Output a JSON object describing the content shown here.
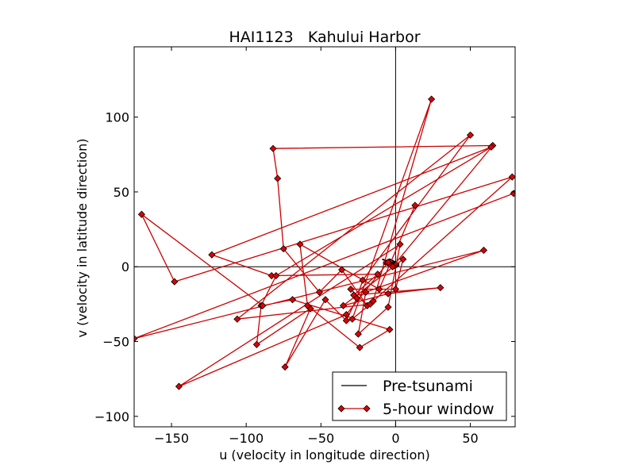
{
  "chart_data": {
    "type": "scatter",
    "title": "HAI1123   Kahului Harbor",
    "xlabel": "u (velocity in longitude direction)",
    "ylabel": "v (velocity in latitude direction)",
    "xlim": [
      -175,
      80
    ],
    "ylim": [
      -107,
      147
    ],
    "xticks": [
      -150,
      -100,
      -50,
      0,
      50
    ],
    "yticks": [
      -100,
      -50,
      0,
      50,
      100
    ],
    "xtick_labels": [
      "−150",
      "−100",
      "−50",
      "0",
      "50"
    ],
    "ytick_labels": [
      "−100",
      "−50",
      "0",
      "50",
      "100"
    ],
    "grid": false,
    "reference_lines": {
      "x": 0,
      "y": 0
    },
    "legend_position": "lower-right",
    "series": [
      {
        "name": "Pre-tsunami",
        "color": "#000000",
        "marker": "line",
        "x": [
          -9,
          -6,
          -4,
          -2,
          -1,
          0,
          1,
          2,
          0,
          -2,
          -4,
          -6,
          -8,
          -5,
          -3,
          -1,
          1,
          2,
          0,
          -3,
          -6,
          -8,
          -4,
          -1,
          1
        ],
        "y": [
          5,
          4,
          3,
          2,
          1,
          0,
          1,
          2,
          3,
          4,
          5,
          4,
          2,
          1,
          0,
          -1,
          0,
          1,
          2,
          3,
          4,
          3,
          2,
          1,
          0
        ]
      },
      {
        "name": "5-hour window",
        "color": "#cc0000",
        "marker": "diamond",
        "x": [
          79,
          -175,
          59,
          -20,
          -25,
          -5,
          3,
          -145,
          -33,
          -5,
          -2,
          65,
          -82,
          -79,
          -75,
          -51,
          -36,
          -19,
          -30,
          0,
          5,
          -35,
          -5,
          30,
          -28,
          -12,
          -83,
          -123,
          64,
          -80,
          -90,
          -93,
          -57,
          -74,
          -47,
          -33,
          -26,
          -22,
          50,
          -106,
          -17,
          -29,
          24,
          -15,
          78,
          -148,
          -170,
          -89,
          -69,
          -4,
          -24,
          -59,
          -64,
          -11,
          13
        ],
        "y": [
          49,
          -48,
          11,
          -17,
          -45,
          -27,
          15,
          -80,
          -32,
          3,
          0,
          81,
          79,
          59,
          12,
          -17,
          -2,
          -26,
          -15,
          -15,
          5,
          -26,
          -18,
          -14,
          -19,
          -5,
          -6,
          8,
          80,
          -6,
          -26,
          -52,
          -28,
          -67,
          -22,
          -36,
          -21,
          -9,
          88,
          -35,
          -25,
          -35,
          112,
          -23,
          60,
          -10,
          35,
          -26,
          -22,
          -42,
          -54,
          -26,
          15,
          -15,
          41
        ]
      }
    ]
  }
}
